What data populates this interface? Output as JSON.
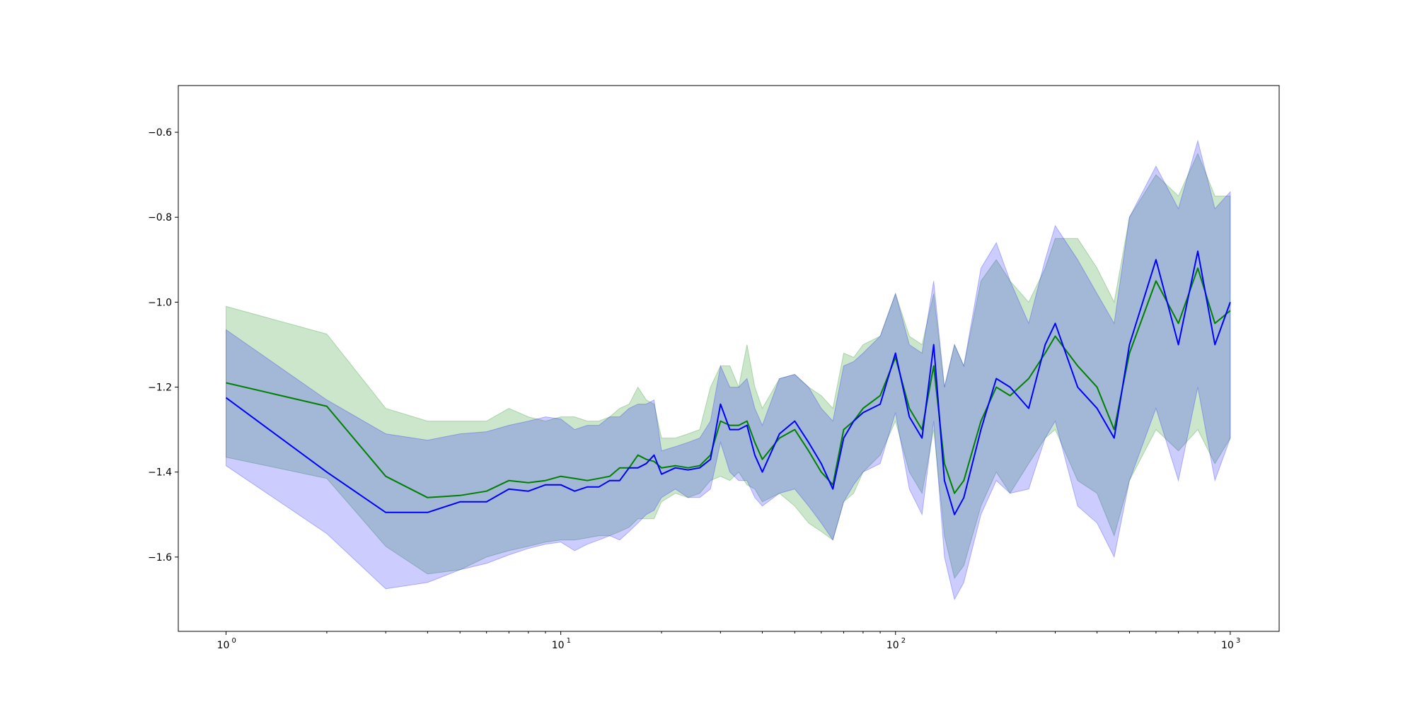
{
  "chart_data": {
    "type": "line",
    "title": "",
    "xlabel": "",
    "ylabel": "",
    "x_scale": "log",
    "xlim": [
      0.72,
      1400
    ],
    "ylim": [
      -1.775,
      -0.49
    ],
    "grid": false,
    "x_ticks": [
      {
        "value": 1,
        "base": "10",
        "exp": "0"
      },
      {
        "value": 10,
        "base": "10",
        "exp": "1"
      },
      {
        "value": 100,
        "base": "10",
        "exp": "2"
      },
      {
        "value": 1000,
        "base": "10",
        "exp": "3"
      }
    ],
    "y_ticks": [
      {
        "value": -0.6,
        "label": "−0.6"
      },
      {
        "value": -0.8,
        "label": "−0.8"
      },
      {
        "value": -1.0,
        "label": "−1.0"
      },
      {
        "value": -1.2,
        "label": "−1.2"
      },
      {
        "value": -1.4,
        "label": "−1.4"
      },
      {
        "value": -1.6,
        "label": "−1.6"
      }
    ],
    "series": [
      {
        "color": "#008000",
        "band_color": "#008000",
        "band_opacity": 0.2,
        "x": [
          1,
          2,
          3,
          4,
          5,
          6,
          7,
          8,
          9,
          10,
          11,
          12,
          13,
          14,
          15,
          16,
          17,
          18,
          19,
          20,
          22,
          24,
          26,
          28,
          30,
          32,
          34,
          36,
          38,
          40,
          45,
          50,
          55,
          60,
          65,
          70,
          75,
          80,
          90,
          100,
          110,
          120,
          130,
          140,
          150,
          160,
          180,
          200,
          220,
          250,
          280,
          300,
          350,
          400,
          450,
          500,
          600,
          700,
          800,
          900,
          1000
        ],
        "y": [
          -1.19,
          -1.245,
          -1.41,
          -1.46,
          -1.455,
          -1.445,
          -1.42,
          -1.425,
          -1.42,
          -1.41,
          -1.415,
          -1.42,
          -1.415,
          -1.41,
          -1.39,
          -1.39,
          -1.36,
          -1.37,
          -1.375,
          -1.39,
          -1.385,
          -1.39,
          -1.385,
          -1.36,
          -1.28,
          -1.29,
          -1.29,
          -1.28,
          -1.33,
          -1.37,
          -1.32,
          -1.3,
          -1.35,
          -1.4,
          -1.43,
          -1.3,
          -1.28,
          -1.25,
          -1.22,
          -1.13,
          -1.25,
          -1.3,
          -1.15,
          -1.38,
          -1.45,
          -1.42,
          -1.28,
          -1.2,
          -1.22,
          -1.18,
          -1.12,
          -1.08,
          -1.15,
          -1.2,
          -1.3,
          -1.12,
          -0.95,
          -1.05,
          -0.92,
          -1.05,
          -1.02
        ],
        "upper": [
          -1.01,
          -1.075,
          -1.25,
          -1.28,
          -1.28,
          -1.28,
          -1.25,
          -1.27,
          -1.28,
          -1.27,
          -1.27,
          -1.28,
          -1.28,
          -1.27,
          -1.25,
          -1.24,
          -1.2,
          -1.23,
          -1.24,
          -1.32,
          -1.32,
          -1.31,
          -1.3,
          -1.2,
          -1.15,
          -1.15,
          -1.2,
          -1.1,
          -1.2,
          -1.25,
          -1.18,
          -1.17,
          -1.2,
          -1.22,
          -1.25,
          -1.12,
          -1.13,
          -1.1,
          -1.08,
          -0.98,
          -1.08,
          -1.1,
          -0.98,
          -1.2,
          -1.1,
          -1.15,
          -0.95,
          -0.9,
          -0.95,
          -1.0,
          -0.92,
          -0.85,
          -0.85,
          -0.92,
          -1.0,
          -0.8,
          -0.7,
          -0.75,
          -0.65,
          -0.75,
          -0.75
        ],
        "lower": [
          -1.365,
          -1.415,
          -1.575,
          -1.64,
          -1.63,
          -1.6,
          -1.585,
          -1.575,
          -1.565,
          -1.56,
          -1.56,
          -1.555,
          -1.55,
          -1.55,
          -1.54,
          -1.53,
          -1.51,
          -1.51,
          -1.51,
          -1.47,
          -1.45,
          -1.46,
          -1.45,
          -1.42,
          -1.41,
          -1.42,
          -1.4,
          -1.43,
          -1.44,
          -1.47,
          -1.45,
          -1.48,
          -1.52,
          -1.54,
          -1.56,
          -1.47,
          -1.45,
          -1.4,
          -1.36,
          -1.28,
          -1.4,
          -1.45,
          -1.3,
          -1.55,
          -1.65,
          -1.62,
          -1.48,
          -1.4,
          -1.45,
          -1.38,
          -1.32,
          -1.3,
          -1.42,
          -1.45,
          -1.55,
          -1.42,
          -1.3,
          -1.35,
          -1.3,
          -1.38,
          -1.32
        ]
      },
      {
        "color": "#0000ff",
        "band_color": "#0000ff",
        "band_opacity": 0.2,
        "x": [
          1,
          2,
          3,
          4,
          5,
          6,
          7,
          8,
          9,
          10,
          11,
          12,
          13,
          14,
          15,
          16,
          17,
          18,
          19,
          20,
          22,
          24,
          26,
          28,
          30,
          32,
          34,
          36,
          38,
          40,
          45,
          50,
          55,
          60,
          65,
          70,
          75,
          80,
          90,
          100,
          110,
          120,
          130,
          140,
          150,
          160,
          180,
          200,
          220,
          250,
          280,
          300,
          350,
          400,
          450,
          500,
          600,
          700,
          800,
          900,
          1000
        ],
        "y": [
          -1.225,
          -1.4,
          -1.495,
          -1.495,
          -1.47,
          -1.47,
          -1.44,
          -1.445,
          -1.43,
          -1.43,
          -1.445,
          -1.435,
          -1.435,
          -1.42,
          -1.42,
          -1.39,
          -1.39,
          -1.38,
          -1.36,
          -1.405,
          -1.39,
          -1.395,
          -1.39,
          -1.37,
          -1.24,
          -1.3,
          -1.3,
          -1.29,
          -1.36,
          -1.4,
          -1.31,
          -1.28,
          -1.33,
          -1.38,
          -1.44,
          -1.32,
          -1.28,
          -1.26,
          -1.24,
          -1.12,
          -1.27,
          -1.32,
          -1.1,
          -1.42,
          -1.5,
          -1.46,
          -1.3,
          -1.18,
          -1.2,
          -1.25,
          -1.1,
          -1.05,
          -1.2,
          -1.25,
          -1.32,
          -1.1,
          -0.9,
          -1.1,
          -0.88,
          -1.1,
          -1.0
        ],
        "upper": [
          -1.065,
          -1.23,
          -1.31,
          -1.325,
          -1.31,
          -1.305,
          -1.29,
          -1.28,
          -1.27,
          -1.275,
          -1.3,
          -1.29,
          -1.29,
          -1.27,
          -1.27,
          -1.25,
          -1.24,
          -1.24,
          -1.23,
          -1.35,
          -1.34,
          -1.33,
          -1.32,
          -1.28,
          -1.15,
          -1.2,
          -1.2,
          -1.18,
          -1.25,
          -1.29,
          -1.18,
          -1.17,
          -1.2,
          -1.25,
          -1.28,
          -1.15,
          -1.14,
          -1.12,
          -1.08,
          -0.98,
          -1.1,
          -1.12,
          -0.95,
          -1.2,
          -1.1,
          -1.15,
          -0.92,
          -0.86,
          -0.95,
          -1.05,
          -0.9,
          -0.82,
          -0.9,
          -0.98,
          -1.05,
          -0.8,
          -0.68,
          -0.78,
          -0.62,
          -0.78,
          -0.74
        ],
        "lower": [
          -1.385,
          -1.545,
          -1.675,
          -1.66,
          -1.63,
          -1.615,
          -1.595,
          -1.58,
          -1.57,
          -1.565,
          -1.585,
          -1.57,
          -1.56,
          -1.55,
          -1.56,
          -1.54,
          -1.52,
          -1.5,
          -1.49,
          -1.46,
          -1.44,
          -1.46,
          -1.46,
          -1.44,
          -1.33,
          -1.4,
          -1.42,
          -1.42,
          -1.46,
          -1.48,
          -1.45,
          -1.44,
          -1.48,
          -1.52,
          -1.56,
          -1.47,
          -1.43,
          -1.4,
          -1.38,
          -1.26,
          -1.44,
          -1.5,
          -1.28,
          -1.6,
          -1.7,
          -1.66,
          -1.5,
          -1.42,
          -1.45,
          -1.44,
          -1.32,
          -1.28,
          -1.48,
          -1.52,
          -1.6,
          -1.42,
          -1.25,
          -1.42,
          -1.2,
          -1.42,
          -1.32
        ]
      }
    ]
  }
}
